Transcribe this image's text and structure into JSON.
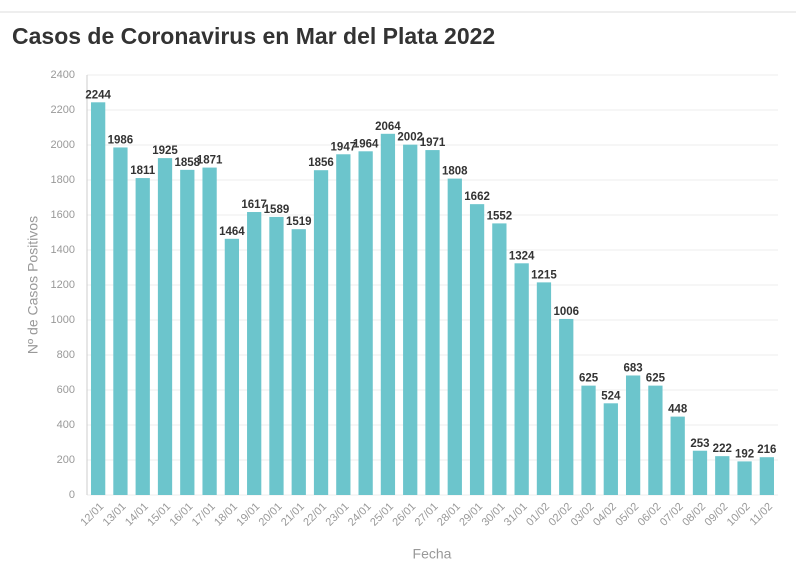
{
  "chart_data": {
    "type": "bar",
    "title": "Casos de Coronavirus en Mar del Plata 2022",
    "x_label": "Fecha",
    "y_label": "Nº de Casos Positivos",
    "categories": [
      "12/01",
      "13/01",
      "14/01",
      "15/01",
      "16/01",
      "17/01",
      "18/01",
      "19/01",
      "20/01",
      "21/01",
      "22/01",
      "23/01",
      "24/01",
      "25/01",
      "26/01",
      "27/01",
      "28/01",
      "29/01",
      "30/01",
      "31/01",
      "01/02",
      "02/02",
      "03/02",
      "04/02",
      "05/02",
      "06/02",
      "07/02",
      "08/02",
      "09/02",
      "10/02",
      "11/02"
    ],
    "values": [
      2244,
      1986,
      1811,
      1925,
      1858,
      1871,
      1464,
      1617,
      1589,
      1519,
      1856,
      1947,
      1964,
      2064,
      2002,
      1971,
      1808,
      1662,
      1552,
      1324,
      1215,
      1006,
      625,
      524,
      683,
      625,
      448,
      253,
      222,
      192,
      216
    ],
    "color": "#6cc5cc",
    "ylim": [
      0,
      2400
    ],
    "yticks": [
      0,
      200,
      400,
      600,
      800,
      1000,
      1200,
      1400,
      1600,
      1800,
      2000,
      2200,
      2400
    ],
    "grid": true
  }
}
